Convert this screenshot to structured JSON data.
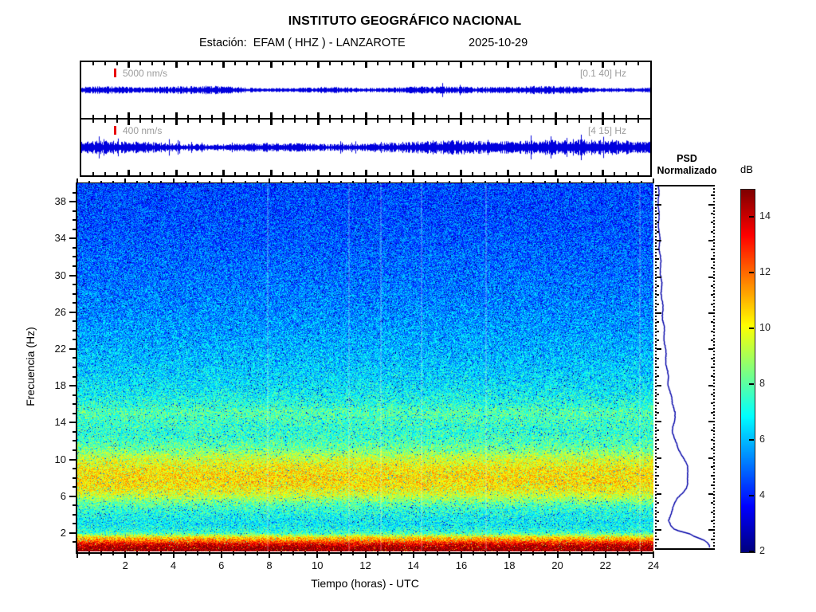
{
  "header": {
    "title": "INSTITUTO GEOGRÁFICO NACIONAL",
    "station_line": "Estación:  EFAM ( HHZ ) - LANZAROTE",
    "date": "2025-10-29"
  },
  "trace_panels": [
    {
      "scale_label": "5000 nm/s",
      "band_label": "[0.1 40] Hz"
    },
    {
      "scale_label": "400 nm/s",
      "band_label": "[4 15] Hz"
    }
  ],
  "axes": {
    "xlabel": "Tiempo (horas) - UTC",
    "ylabel": "Frecuencia (Hz)",
    "xticks": [
      2,
      4,
      6,
      8,
      10,
      12,
      14,
      16,
      18,
      20,
      22,
      24
    ],
    "yticks": [
      2,
      6,
      10,
      14,
      18,
      22,
      26,
      30,
      34,
      38
    ],
    "x_range_hours": [
      0,
      24
    ],
    "y_range_hz": [
      0,
      40
    ]
  },
  "psd_panel": {
    "line1": "PSD",
    "line2": "Normalizado"
  },
  "colorbar": {
    "label": "dB",
    "ticks": [
      2,
      4,
      6,
      8,
      10,
      12,
      14
    ],
    "range": [
      2,
      15
    ],
    "colormap": "jet"
  },
  "colors": {
    "trace_blue": "#0000dd",
    "psd_curve_blue": "#0000a8",
    "scale_marker_red": "#e8000b",
    "muted_label_gray": "#9c9c9c",
    "axis_black": "#000000"
  },
  "chart_data": [
    {
      "type": "line",
      "name": "seismogram-broadband",
      "band_hz": [
        0.1,
        40
      ],
      "scale_bar": "5000 nm/s",
      "x_range_hours": [
        0,
        24
      ],
      "description": "continuous low-amplitude blue noise trace, slight amplitude modulation"
    },
    {
      "type": "line",
      "name": "seismogram-filtered",
      "band_hz": [
        4,
        15
      ],
      "scale_bar": "400 nm/s",
      "x_range_hours": [
        0,
        24
      ],
      "description": "spiky blue noise trace, amplitude increases after ~13 h UTC"
    },
    {
      "type": "heatmap",
      "name": "spectrogram",
      "xlabel": "Tiempo (horas) - UTC",
      "ylabel": "Frecuencia (Hz)",
      "x_range": [
        0,
        24
      ],
      "y_range": [
        0,
        40
      ],
      "clim_db": [
        2,
        15
      ],
      "colormap": "jet",
      "xticks": [
        2,
        4,
        6,
        8,
        10,
        12,
        14,
        16,
        18,
        20,
        22,
        24
      ],
      "yticks": [
        2,
        6,
        10,
        14,
        18,
        22,
        26,
        30,
        34,
        38
      ],
      "freq_profile_hz": [
        0.2,
        0.5,
        0.8,
        1.0,
        1.2,
        1.5,
        1.8,
        2.0,
        2.3,
        2.6,
        3.0,
        3.5,
        4.0,
        4.5,
        5.0,
        5.5,
        6.0,
        6.5,
        7.0,
        8.0,
        9.0,
        9.5,
        10.0,
        10.5,
        11.0,
        12.0,
        13.0,
        14.0,
        15.0,
        15.5,
        16.0,
        17.0,
        18.0,
        20.0,
        22.0,
        25.0,
        28.0,
        32.0,
        36.0,
        40.0
      ],
      "mean_db": [
        14.7,
        14.4,
        13.6,
        12.6,
        11.6,
        10.6,
        8.6,
        7.6,
        7.1,
        6.9,
        6.6,
        6.8,
        7.0,
        7.3,
        7.8,
        8.4,
        9.2,
        9.8,
        10.2,
        10.4,
        10.1,
        9.8,
        9.4,
        8.9,
        8.3,
        7.6,
        7.3,
        7.5,
        7.8,
        7.6,
        7.2,
        6.8,
        6.5,
        6.1,
        5.8,
        5.4,
        5.1,
        4.8,
        4.5,
        4.4
      ],
      "gap_streaks_hours": [
        7.9,
        11.3,
        12.6,
        14.3,
        17.0,
        23.4
      ]
    },
    {
      "type": "line",
      "name": "psd-normalizado",
      "title": "PSD Normalizado",
      "orientation": "vertical",
      "x_range_normalized": [
        0,
        1
      ],
      "y_range_hz": [
        0,
        40
      ],
      "freq_hz": [
        0.2,
        0.5,
        0.8,
        1.0,
        1.2,
        1.5,
        1.8,
        2.0,
        2.3,
        2.6,
        3.0,
        3.5,
        4.0,
        4.5,
        5.0,
        5.5,
        6.0,
        6.5,
        7.0,
        8.0,
        9.0,
        9.5,
        10.0,
        10.5,
        11.0,
        12.0,
        13.0,
        14.0,
        15.0,
        15.5,
        16.0,
        17.0,
        18.0,
        20.0,
        22.0,
        25.0,
        28.0,
        32.0,
        36.0,
        40.0
      ],
      "normalized": [
        1.0,
        0.97,
        0.89,
        0.8,
        0.7,
        0.6,
        0.41,
        0.31,
        0.26,
        0.24,
        0.21,
        0.23,
        0.25,
        0.28,
        0.33,
        0.39,
        0.47,
        0.52,
        0.56,
        0.58,
        0.55,
        0.52,
        0.49,
        0.44,
        0.38,
        0.31,
        0.28,
        0.3,
        0.33,
        0.31,
        0.27,
        0.23,
        0.2,
        0.17,
        0.14,
        0.1,
        0.07,
        0.04,
        0.01,
        0.0
      ]
    }
  ]
}
